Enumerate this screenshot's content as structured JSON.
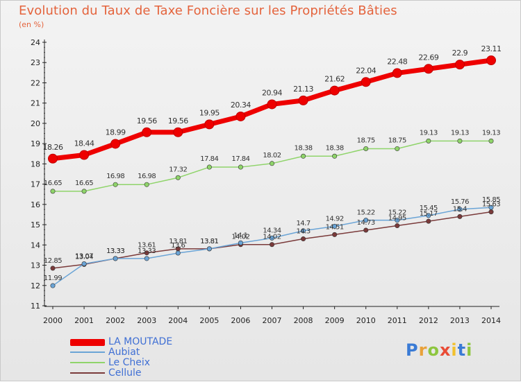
{
  "header": {
    "title": "Evolution du Taux de Taxe Foncière sur les Propriétés Bâties",
    "subtitle": "(en %)"
  },
  "logo": {
    "text": "Proxiti"
  },
  "colors": {
    "la_moutade": "#ee0000",
    "aubiat": "#6aa4d6",
    "le_cheix": "#8fd46a",
    "cellule": "#7a3a3a",
    "axis_text": "#222222",
    "title": "#e4633c"
  },
  "chart_data": {
    "type": "line",
    "title": "Evolution du Taux de Taxe Foncière sur les Propriétés Bâties",
    "ylabel": "(en %)",
    "xlabel": "",
    "x": [
      2000,
      2001,
      2002,
      2003,
      2004,
      2005,
      2006,
      2007,
      2008,
      2009,
      2010,
      2011,
      2012,
      2013,
      2014
    ],
    "ylim": [
      11,
      24
    ],
    "yticks": [
      11,
      12,
      13,
      14,
      15,
      16,
      17,
      18,
      19,
      20,
      21,
      22,
      23,
      24
    ],
    "grid": false,
    "legend_position": "bottom-left",
    "series": [
      {
        "name": "LA MOUTADE",
        "values": [
          18.26,
          18.44,
          18.99,
          19.56,
          19.56,
          19.95,
          20.34,
          20.94,
          21.13,
          21.62,
          22.04,
          22.48,
          22.69,
          22.9,
          23.11
        ],
        "labels": [
          "18.26",
          "18.44",
          "18.99",
          "19.56",
          "19.56",
          "19.95",
          "20.34",
          "20.94",
          "21.13",
          "21.62",
          "22.04",
          "22.48",
          "22.69",
          "22.9",
          "23.11"
        ]
      },
      {
        "name": "Aubiat",
        "values": [
          11.99,
          13.07,
          13.33,
          13.33,
          13.6,
          13.81,
          14.1,
          14.34,
          14.7,
          14.92,
          15.22,
          15.22,
          15.45,
          15.76,
          15.85
        ],
        "labels": [
          "11.99",
          "13.07",
          "13.33",
          "13.33",
          "13.6",
          "13.81",
          "14.1",
          "14.34",
          "14.7",
          "14.92",
          "15.22",
          "15.22",
          "15.45",
          "15.76",
          "15.85"
        ]
      },
      {
        "name": "Le Cheix",
        "values": [
          16.65,
          16.65,
          16.98,
          16.98,
          17.32,
          17.84,
          17.84,
          18.02,
          18.38,
          18.38,
          18.75,
          18.75,
          19.13,
          19.13,
          19.13
        ],
        "labels": [
          "16.65",
          "16.65",
          "16.98",
          "16.98",
          "17.32",
          "17.84",
          "17.84",
          "18.02",
          "18.38",
          "18.38",
          "18.75",
          "18.75",
          "19.13",
          "19.13",
          "19.13"
        ]
      },
      {
        "name": "Cellule",
        "values": [
          12.85,
          13.04,
          13.33,
          13.61,
          13.81,
          13.81,
          14.02,
          14.02,
          14.3,
          14.51,
          14.73,
          14.95,
          15.17,
          15.4,
          15.63
        ],
        "labels": [
          "12.85",
          "13.04",
          "13.33",
          "13.61",
          "13.81",
          "13.81",
          "14.02",
          "14.02",
          "14.3",
          "14.51",
          "14.73",
          "14.95",
          "15.17",
          "15.4",
          "15.63"
        ]
      }
    ]
  }
}
